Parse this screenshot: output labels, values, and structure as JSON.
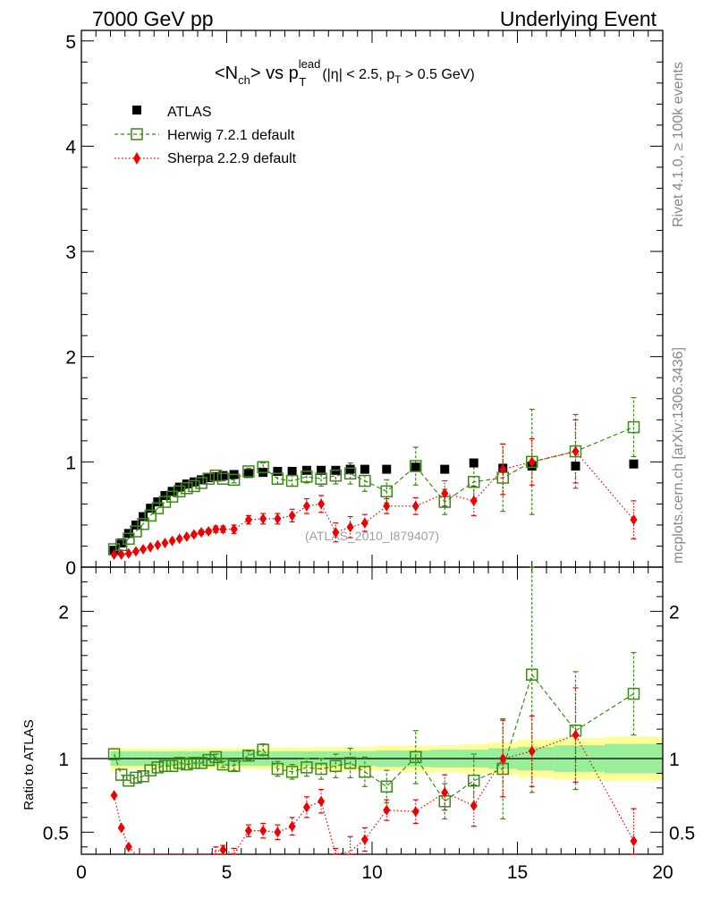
{
  "chart_data": {
    "type": "scatter",
    "header_left": "7000 GeV pp",
    "header_right": "Underlying Event",
    "title": {
      "main": "<N",
      "sub_ch": "ch",
      "vs": "> vs p",
      "sup_lead": "lead",
      "sub_T": "T",
      "cut_open": "(|η| < 2.5, p",
      "cut_sub_T": "T",
      "cut_close": " > 0.5 GeV)"
    },
    "side_label_top": "Rivet 4.1.0, ≥ 100k events",
    "side_label_bottom": "mcplots.cern.ch [arXiv:1306.3436]",
    "watermark": "(ATLAS_2010_I879407)",
    "ratio_ylabel": "Ratio to ATLAS",
    "main_xlim": [
      0,
      20
    ],
    "main_ylim": [
      0,
      5.1
    ],
    "ratio_ylim": [
      0.35,
      2.3
    ],
    "x_ticks": [
      "0",
      "5",
      "10",
      "15",
      "20"
    ],
    "main_y_ticks": [
      "0",
      "1",
      "2",
      "3",
      "4",
      "5"
    ],
    "ratio_y_ticks": [
      "0.5",
      "1",
      "2"
    ],
    "legend": [
      {
        "name": "ATLAS",
        "color": "#000000",
        "marker": "square-filled"
      },
      {
        "name": "Herwig 7.2.1 default",
        "color": "#3a8a14",
        "marker": "square-open"
      },
      {
        "name": "Sherpa 2.2.9 default",
        "color": "#ee0000",
        "marker": "diamond"
      }
    ],
    "x": [
      1.125,
      1.375,
      1.625,
      1.875,
      2.125,
      2.375,
      2.625,
      2.875,
      3.125,
      3.375,
      3.625,
      3.875,
      4.125,
      4.375,
      4.625,
      4.875,
      5.25,
      5.75,
      6.25,
      6.75,
      7.25,
      7.75,
      8.25,
      8.75,
      9.25,
      9.75,
      10.5,
      11.5,
      12.5,
      13.5,
      14.5,
      15.5,
      17.0,
      19.0
    ],
    "atlas": [
      0.16,
      0.23,
      0.32,
      0.4,
      0.48,
      0.56,
      0.62,
      0.68,
      0.72,
      0.76,
      0.79,
      0.81,
      0.83,
      0.85,
      0.86,
      0.87,
      0.88,
      0.89,
      0.9,
      0.91,
      0.91,
      0.92,
      0.92,
      0.92,
      0.93,
      0.93,
      0.93,
      0.95,
      0.93,
      0.99,
      0.94,
      0.96,
      0.96,
      0.98
    ],
    "herwig": [
      0.17,
      0.21,
      0.27,
      0.34,
      0.41,
      0.49,
      0.56,
      0.62,
      0.67,
      0.72,
      0.75,
      0.77,
      0.8,
      0.84,
      0.87,
      0.84,
      0.83,
      0.91,
      0.95,
      0.84,
      0.82,
      0.86,
      0.84,
      0.87,
      0.89,
      0.82,
      0.72,
      0.96,
      0.62,
      0.81,
      0.85,
      1.0,
      1.1,
      1.33
    ],
    "herwig_err": [
      0.01,
      0.01,
      0.01,
      0.01,
      0.01,
      0.01,
      0.01,
      0.01,
      0.01,
      0.01,
      0.01,
      0.01,
      0.01,
      0.01,
      0.02,
      0.02,
      0.03,
      0.03,
      0.04,
      0.05,
      0.05,
      0.06,
      0.07,
      0.08,
      0.1,
      0.1,
      0.11,
      0.18,
      0.12,
      0.18,
      0.32,
      0.5,
      0.35,
      0.28
    ],
    "sherpa": [
      0.12,
      0.12,
      0.13,
      0.15,
      0.17,
      0.19,
      0.21,
      0.23,
      0.25,
      0.27,
      0.29,
      0.31,
      0.33,
      0.34,
      0.36,
      0.36,
      0.36,
      0.45,
      0.46,
      0.46,
      0.49,
      0.58,
      0.6,
      0.33,
      0.38,
      0.42,
      0.58,
      0.58,
      0.7,
      0.63,
      0.93,
      1.0,
      1.1,
      0.45
    ],
    "sherpa_err": [
      0.01,
      0.01,
      0.01,
      0.01,
      0.01,
      0.01,
      0.01,
      0.01,
      0.01,
      0.01,
      0.01,
      0.02,
      0.02,
      0.02,
      0.03,
      0.03,
      0.04,
      0.04,
      0.05,
      0.05,
      0.06,
      0.07,
      0.08,
      0.09,
      0.1,
      0.08,
      0.07,
      0.08,
      0.12,
      0.14,
      0.24,
      0.22,
      0.3,
      0.18
    ],
    "ratio_herwig": [
      1.03,
      0.89,
      0.85,
      0.87,
      0.88,
      0.92,
      0.94,
      0.95,
      0.95,
      0.97,
      0.96,
      0.97,
      0.97,
      0.99,
      1.01,
      0.96,
      0.95,
      1.02,
      1.06,
      0.93,
      0.91,
      0.94,
      0.93,
      0.95,
      0.97,
      0.91,
      0.81,
      1.01,
      0.71,
      0.85,
      0.93,
      1.57,
      1.19,
      1.44
    ],
    "ratio_herwig_err": [
      0.01,
      0.01,
      0.01,
      0.01,
      0.01,
      0.01,
      0.01,
      0.01,
      0.01,
      0.01,
      0.01,
      0.01,
      0.01,
      0.01,
      0.02,
      0.02,
      0.03,
      0.03,
      0.04,
      0.05,
      0.05,
      0.06,
      0.07,
      0.08,
      0.1,
      0.1,
      0.11,
      0.18,
      0.12,
      0.18,
      0.34,
      0.8,
      0.4,
      0.28
    ],
    "ratio_sherpa": [
      0.75,
      0.53,
      0.4,
      0.33,
      0.32,
      0.32,
      0.32,
      0.32,
      0.32,
      0.32,
      0.32,
      0.32,
      0.32,
      0.32,
      0.37,
      0.38,
      0.35,
      0.51,
      0.51,
      0.5,
      0.54,
      0.67,
      0.71,
      0.3,
      0.37,
      0.45,
      0.65,
      0.64,
      0.77,
      0.68,
      1.0,
      1.05,
      1.16,
      0.44
    ],
    "ratio_sherpa_err": [
      0.01,
      0.01,
      0.01,
      0.01,
      0.01,
      0.01,
      0.01,
      0.01,
      0.01,
      0.01,
      0.01,
      0.02,
      0.02,
      0.02,
      0.03,
      0.03,
      0.04,
      0.04,
      0.05,
      0.05,
      0.06,
      0.07,
      0.08,
      0.09,
      0.1,
      0.08,
      0.07,
      0.08,
      0.12,
      0.14,
      0.26,
      0.24,
      0.32,
      0.22
    ],
    "band_inner": [
      0.05,
      0.05,
      0.05,
      0.05,
      0.05,
      0.05,
      0.05,
      0.05,
      0.05,
      0.05,
      0.05,
      0.05,
      0.05,
      0.05,
      0.05,
      0.05,
      0.05,
      0.05,
      0.05,
      0.05,
      0.05,
      0.05,
      0.05,
      0.05,
      0.05,
      0.05,
      0.055,
      0.055,
      0.06,
      0.06,
      0.07,
      0.08,
      0.09,
      0.1
    ],
    "band_outer": [
      0.08,
      0.07,
      0.07,
      0.07,
      0.07,
      0.07,
      0.07,
      0.07,
      0.07,
      0.07,
      0.07,
      0.07,
      0.07,
      0.07,
      0.07,
      0.07,
      0.07,
      0.07,
      0.075,
      0.075,
      0.075,
      0.075,
      0.08,
      0.08,
      0.08,
      0.08,
      0.085,
      0.09,
      0.09,
      0.1,
      0.11,
      0.13,
      0.14,
      0.15
    ]
  }
}
